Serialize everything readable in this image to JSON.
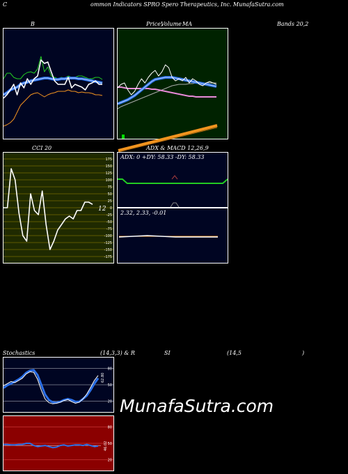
{
  "header": {
    "c": "C",
    "title": "ommon  Indicators SPRO Spero  Therapeutics, Inc. MunafaSutra.com"
  },
  "labels": {
    "b": "B",
    "price_a": "Price,",
    "price_b": "Volume",
    "price_c": "MA",
    "bands": "Bands 20,2",
    "cci": "CCI 20",
    "adx_macd": "ADX  & MACD 12,26,9",
    "stoch_a": "Stochastics",
    "stoch_b": "(14,3,3) & R",
    "stoch_c": "SI",
    "stoch_d": "(14,5",
    "stoch_e": ")"
  },
  "readouts": {
    "adx": "ADX: 0  +DY: 58.33 -DY: 58.33",
    "macd": "2.32,  2.33,  -0.01",
    "cci_value": "12",
    "stoch_value": "62.80",
    "rsi_value": "46.02"
  },
  "watermark": "MunafaSutra.com",
  "colors": {
    "panel_dark": "#000522",
    "panel_green": "#002200",
    "panel_olive": "#1f2a00",
    "panel_red": "#8b0000",
    "line_white": "#ffffff",
    "line_blue": "#2b6fe6",
    "line_green": "#22cc22",
    "line_orange": "#f2941f",
    "line_pink": "#e88ad8",
    "grid_gold": "#a08800"
  },
  "cci_ticks": [
    "175",
    "150",
    "125",
    "100",
    "75",
    "50",
    "25",
    "0",
    "-25",
    "-50",
    "-75",
    "-100",
    "-125",
    "-150",
    "-175"
  ],
  "stoch_ticks": [
    "80",
    "50",
    "20"
  ],
  "chart_data": [
    {
      "type": "line",
      "panel": "bollinger",
      "series": [
        {
          "values": [
            112,
            104,
            104,
            110,
            112,
            112,
            106,
            103,
            102,
            104,
            98,
            80,
            102,
            95,
            108,
            110,
            112,
            110,
            111,
            108,
            110,
            110,
            108,
            108,
            110,
            112,
            112,
            110,
            110,
            113
          ]
        },
        {
          "values": [
            135,
            132,
            128,
            126,
            124,
            120,
            118,
            117,
            115,
            114,
            113,
            112,
            111,
            111,
            112,
            113,
            113,
            112,
            112,
            111,
            111,
            111,
            112,
            112,
            113,
            114,
            115,
            116,
            117,
            118
          ]
        },
        {
          "values": [
            140,
            135,
            128,
            120,
            135,
            118,
            125,
            112,
            120,
            112,
            108,
            85,
            90,
            88,
            102,
            115,
            120,
            120,
            120,
            110,
            125,
            120,
            122,
            124,
            128,
            120,
            118,
            115,
            120,
            120
          ]
        },
        {
          "values": [
            180,
            178,
            175,
            170,
            160,
            150,
            145,
            140,
            135,
            133,
            132,
            135,
            138,
            135,
            133,
            132,
            130,
            130,
            130,
            128,
            130,
            130,
            132,
            131,
            132,
            132,
            133,
            135,
            135,
            136
          ]
        }
      ]
    },
    {
      "type": "line",
      "panel": "price_volume_ma",
      "series": [
        {
          "values": [
            125,
            120,
            118,
            128,
            135,
            130,
            120,
            112,
            118,
            110,
            104,
            100,
            108,
            102,
            92,
            96,
            110,
            115,
            112,
            115,
            110,
            118,
            112,
            115,
            120,
            122,
            118,
            116,
            118,
            120
          ]
        },
        {
          "values": [
            148,
            146,
            144,
            142,
            139,
            136,
            132,
            128,
            124,
            120,
            116,
            113,
            112,
            111,
            110,
            110,
            110,
            111,
            112,
            113,
            114,
            115,
            116,
            117,
            118,
            119,
            120,
            121,
            122,
            123
          ]
        },
        {
          "values": [
            124,
            124,
            125,
            126,
            126,
            126,
            126,
            126,
            126,
            126,
            127,
            127,
            128,
            129,
            130,
            131,
            132,
            133,
            134,
            135,
            136,
            137,
            137,
            138,
            138,
            138,
            138,
            138,
            138,
            138
          ]
        },
        {
          "values": [
            155,
            152,
            150,
            148,
            146,
            144,
            142,
            140,
            138,
            136,
            134,
            132,
            130,
            128,
            126,
            124,
            122,
            121,
            120,
            120,
            120,
            119,
            119,
            118,
            118,
            118,
            118,
            118,
            118,
            118
          ]
        }
      ],
      "volume": [
        6,
        0,
        0,
        0,
        0,
        0,
        0,
        0,
        0,
        0,
        0,
        0,
        0,
        0,
        0,
        0,
        0,
        0,
        0,
        0,
        0,
        0,
        0,
        0,
        0,
        0,
        0,
        0,
        0,
        0
      ]
    },
    {
      "type": "line",
      "panel": "cci",
      "ylim": [
        -175,
        175
      ],
      "series": [
        {
          "values": [
            0,
            0,
            140,
            100,
            -20,
            -100,
            -120,
            50,
            -10,
            -25,
            60,
            -60,
            -150,
            -120,
            -80,
            -60,
            -40,
            -30,
            -40,
            -10,
            -10,
            20,
            20,
            12
          ]
        }
      ]
    },
    {
      "type": "line",
      "panel": "adx",
      "series": [
        {
          "values": [
            62,
            62,
            56,
            56,
            56,
            56,
            56,
            56,
            56,
            56,
            56,
            56,
            56,
            56,
            56,
            56,
            56,
            56,
            56,
            56,
            56,
            56,
            56,
            62
          ]
        }
      ]
    },
    {
      "type": "line",
      "panel": "macd",
      "series": [
        {
          "values": [
            2.32,
            2.33,
            2.34,
            2.33,
            2.32,
            2.32,
            2.32,
            2.32
          ]
        },
        {
          "values": [
            2.33,
            2.33,
            2.33,
            2.33,
            2.33,
            2.33,
            2.33,
            2.33
          ]
        }
      ]
    },
    {
      "type": "line",
      "panel": "stochastics",
      "ylim": [
        0,
        100
      ],
      "ytick_labels": [
        "80",
        "50",
        "20"
      ],
      "series": [
        {
          "values": [
            48,
            52,
            56,
            54,
            58,
            62,
            70,
            74,
            73,
            60,
            40,
            24,
            17,
            15,
            16,
            18,
            21,
            23,
            19,
            16,
            18,
            24,
            33,
            45,
            58,
            67
          ]
        },
        {
          "values": [
            44,
            49,
            52,
            56,
            60,
            65,
            72,
            76,
            77,
            68,
            50,
            32,
            22,
            18,
            17,
            19,
            22,
            24,
            22,
            19,
            19,
            24,
            30,
            40,
            52,
            62
          ]
        }
      ]
    },
    {
      "type": "line",
      "panel": "rsi",
      "ylim": [
        0,
        100
      ],
      "ytick_labels": [
        "80",
        "50",
        "20"
      ],
      "series": [
        {
          "values": [
            48,
            48,
            47,
            47,
            48,
            48,
            50,
            50,
            46,
            44,
            45,
            46,
            44,
            42,
            43,
            46,
            47,
            45,
            46,
            47,
            47,
            46,
            48,
            46,
            44,
            45
          ]
        }
      ]
    }
  ]
}
